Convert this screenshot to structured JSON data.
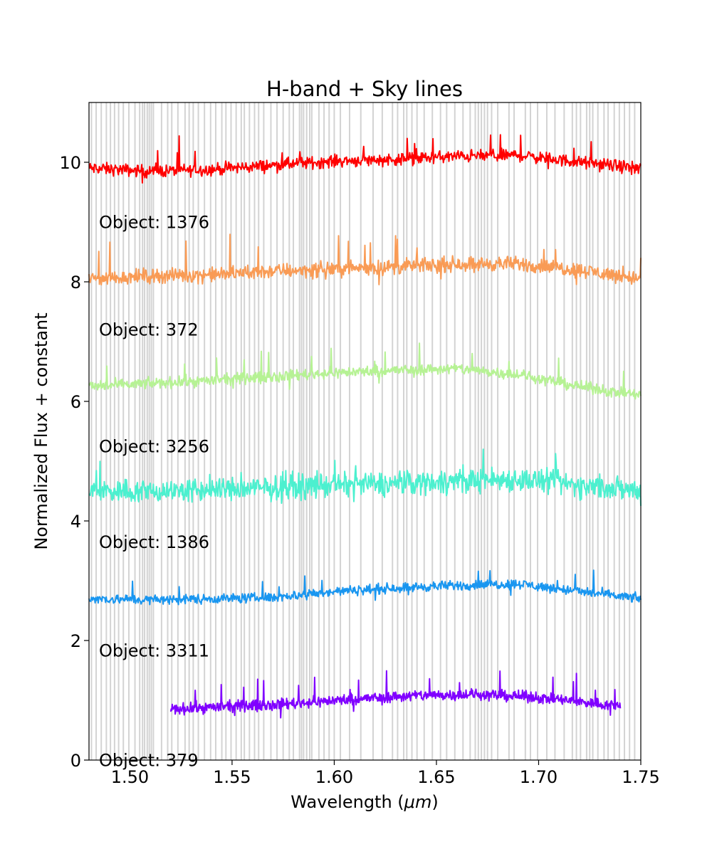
{
  "chart_data": {
    "type": "line",
    "title": "H-band + Sky lines",
    "xlabel_prefix": "Wavelength (",
    "xlabel_unit": "μm",
    "xlabel_suffix": ")",
    "ylabel": "Normalized Flux + constant",
    "xlim": [
      1.48,
      1.75
    ],
    "ylim": [
      0,
      11
    ],
    "x_ticks": [
      1.5,
      1.55,
      1.6,
      1.65,
      1.7,
      1.75
    ],
    "x_tick_labels": [
      "1.50",
      "1.55",
      "1.60",
      "1.65",
      "1.70",
      "1.75"
    ],
    "y_ticks": [
      0,
      2,
      4,
      6,
      8,
      10
    ],
    "y_tick_labels": [
      "0",
      "2",
      "4",
      "6",
      "8",
      "10"
    ],
    "sky_line_color": "#d3d3d3",
    "sky_lines": [
      1.4812,
      1.4835,
      1.486,
      1.4885,
      1.4905,
      1.4925,
      1.4945,
      1.4968,
      1.4995,
      1.5025,
      1.5048,
      1.5062,
      1.5072,
      1.5085,
      1.5095,
      1.5105,
      1.5115,
      1.5155,
      1.5185,
      1.5205,
      1.5235,
      1.527,
      1.529,
      1.531,
      1.5335,
      1.5365,
      1.5395,
      1.542,
      1.545,
      1.547,
      1.5495,
      1.552,
      1.5545,
      1.556,
      1.5585,
      1.561,
      1.563,
      1.5655,
      1.569,
      1.572,
      1.575,
      1.578,
      1.58,
      1.583,
      1.584,
      1.585,
      1.5865,
      1.588,
      1.589,
      1.5925,
      1.595,
      1.5975,
      1.6,
      1.603,
      1.6075,
      1.613,
      1.619,
      1.6235,
      1.6285,
      1.631,
      1.634,
      1.6355,
      1.638,
      1.6405,
      1.644,
      1.648,
      1.652,
      1.655,
      1.659,
      1.663,
      1.6665,
      1.669,
      1.6705,
      1.672,
      1.6735,
      1.675,
      1.677,
      1.68,
      1.6855,
      1.688,
      1.6935,
      1.696,
      1.6995,
      1.704,
      1.708,
      1.7125,
      1.7165,
      1.7185,
      1.7205,
      1.7235,
      1.725,
      1.7265,
      1.729,
      1.732,
      1.734,
      1.737,
      1.7395,
      1.742,
      1.7445,
      1.747
    ],
    "series": [
      {
        "name": "Object: 1376",
        "color": "#ff0000",
        "x_start": 1.48,
        "x_end": 1.75,
        "noise": 0.1,
        "spike": 0.3,
        "continuum_x": [
          1.48,
          1.51,
          1.54,
          1.57,
          1.6,
          1.63,
          1.66,
          1.69,
          1.72,
          1.75
        ],
        "continuum_y": [
          9.9,
          9.85,
          9.88,
          9.95,
          10.02,
          10.05,
          10.1,
          10.12,
          10.0,
          9.9
        ]
      },
      {
        "name": "Object: 372",
        "color": "#f99b55",
        "x_start": 1.48,
        "x_end": 1.75,
        "noise": 0.12,
        "spike": 0.45,
        "continuum_x": [
          1.48,
          1.51,
          1.54,
          1.57,
          1.6,
          1.63,
          1.66,
          1.69,
          1.72,
          1.75
        ],
        "continuum_y": [
          8.05,
          8.1,
          8.12,
          8.18,
          8.22,
          8.25,
          8.3,
          8.3,
          8.2,
          8.05
        ]
      },
      {
        "name": "Object: 3256",
        "color": "#b6f294",
        "x_start": 1.48,
        "x_end": 1.75,
        "noise": 0.09,
        "spike": 0.3,
        "continuum_x": [
          1.48,
          1.51,
          1.54,
          1.57,
          1.6,
          1.63,
          1.66,
          1.69,
          1.72,
          1.75
        ],
        "continuum_y": [
          6.25,
          6.3,
          6.35,
          6.42,
          6.48,
          6.52,
          6.55,
          6.45,
          6.25,
          6.1
        ]
      },
      {
        "name": "Object: 1386",
        "color": "#4cf0cf",
        "x_start": 1.48,
        "x_end": 1.75,
        "noise": 0.2,
        "spike": 0.25,
        "continuum_x": [
          1.48,
          1.51,
          1.54,
          1.57,
          1.6,
          1.63,
          1.66,
          1.69,
          1.72,
          1.75
        ],
        "continuum_y": [
          4.5,
          4.5,
          4.52,
          4.55,
          4.6,
          4.62,
          4.68,
          4.7,
          4.6,
          4.5
        ]
      },
      {
        "name": "Object: 3311",
        "color": "#1996f0",
        "x_start": 1.48,
        "x_end": 1.75,
        "noise": 0.08,
        "spike": 0.35,
        "continuum_x": [
          1.48,
          1.51,
          1.54,
          1.57,
          1.6,
          1.63,
          1.66,
          1.69,
          1.72,
          1.75
        ],
        "continuum_y": [
          2.7,
          2.68,
          2.7,
          2.72,
          2.82,
          2.88,
          2.92,
          2.95,
          2.82,
          2.7
        ]
      },
      {
        "name": "Object: 379",
        "color": "#8000ff",
        "x_start": 1.52,
        "x_end": 1.74,
        "noise": 0.09,
        "spike": 0.3,
        "continuum_x": [
          1.52,
          1.55,
          1.58,
          1.61,
          1.64,
          1.67,
          1.7,
          1.74
        ],
        "continuum_y": [
          0.85,
          0.9,
          0.95,
          1.02,
          1.08,
          1.1,
          1.05,
          0.9
        ]
      }
    ]
  }
}
